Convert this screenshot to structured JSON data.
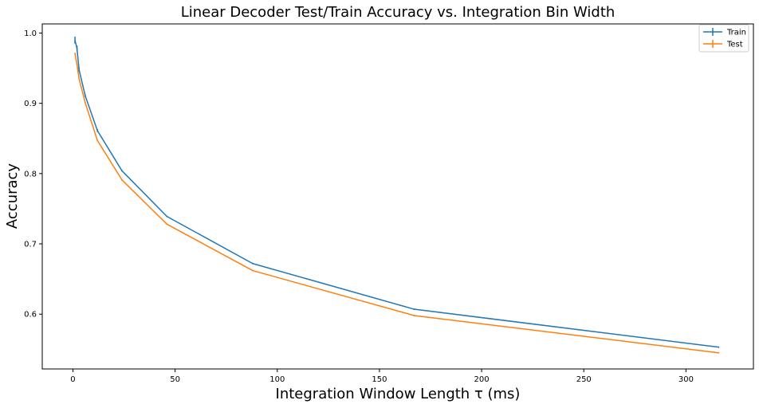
{
  "chart_data": {
    "type": "line",
    "title": "Linear Decoder Test/Train Accuracy vs. Integration Bin Width",
    "xlabel": "Integration Window Length τ (ms)",
    "ylabel": "Accuracy",
    "xlim": [
      -15,
      333
    ],
    "ylim": [
      0.522,
      1.013
    ],
    "xticks": [
      0,
      50,
      100,
      150,
      200,
      250,
      300
    ],
    "yticks": [
      0.6,
      0.7,
      0.8,
      0.9,
      1.0
    ],
    "xtick_labels": [
      "0",
      "50",
      "100",
      "150",
      "200",
      "250",
      "300"
    ],
    "ytick_labels": [
      "0.6",
      "0.7",
      "0.8",
      "0.9",
      "1.0"
    ],
    "grid": false,
    "legend": "top-right",
    "series": [
      {
        "name": "Train",
        "color": "#1f77b4",
        "x": [
          1,
          2,
          3,
          6,
          12,
          24,
          46,
          88,
          167,
          316
        ],
        "y": [
          0.99,
          0.978,
          0.948,
          0.911,
          0.861,
          0.804,
          0.739,
          0.672,
          0.607,
          0.553
        ],
        "err": [
          0.005,
          0.004,
          0.003,
          0.002,
          0.002,
          0.001,
          0.001,
          0.001,
          0.001,
          0.001
        ]
      },
      {
        "name": "Test",
        "color": "#ff7f0e",
        "x": [
          1,
          2,
          3,
          6,
          12,
          24,
          46,
          88,
          167,
          316
        ],
        "y": [
          0.971,
          0.955,
          0.935,
          0.901,
          0.847,
          0.791,
          0.728,
          0.662,
          0.598,
          0.545
        ],
        "err": [
          0.001,
          0.001,
          0.001,
          0.001,
          0.001,
          0.001,
          0.001,
          0.001,
          0.001,
          0.001
        ]
      }
    ]
  }
}
